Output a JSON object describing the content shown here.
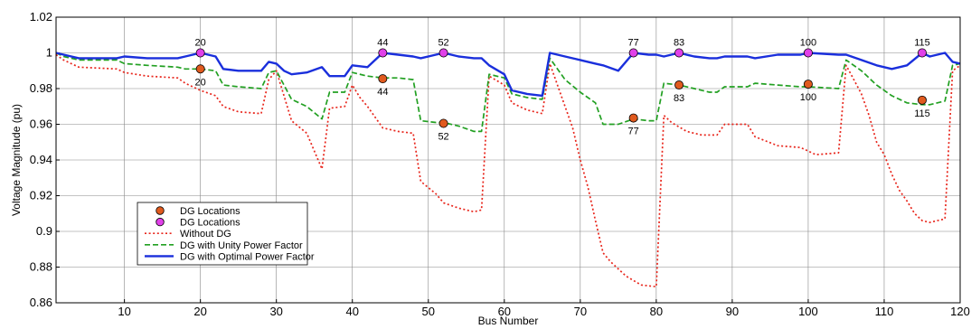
{
  "chart_data": {
    "type": "line",
    "xlabel": "Bus Number",
    "ylabel": "Voltage Magnitude (pu)",
    "xlim": [
      1,
      120
    ],
    "ylim": [
      0.86,
      1.02
    ],
    "xticks": [
      10,
      20,
      30,
      40,
      50,
      60,
      70,
      80,
      90,
      100,
      110,
      120
    ],
    "yticks": [
      0.86,
      0.88,
      0.9,
      0.92,
      0.94,
      0.96,
      0.98,
      1,
      1.02
    ],
    "ytick_labels": [
      "0.86",
      "0.88",
      "0.9",
      "0.92",
      "0.94",
      "0.96",
      "0.98",
      "1",
      "1.02"
    ],
    "grid": true,
    "legend_position": "bottom-left",
    "series": [
      {
        "name": "Without DG",
        "style": "dotted",
        "color": "#e8261c",
        "points": [
          [
            1,
            0.999
          ],
          [
            2,
            0.996
          ],
          [
            4,
            0.992
          ],
          [
            9,
            0.991
          ],
          [
            10,
            0.989
          ],
          [
            13,
            0.987
          ],
          [
            17,
            0.986
          ],
          [
            18,
            0.983
          ],
          [
            20,
            0.979
          ],
          [
            22,
            0.976
          ],
          [
            23,
            0.97
          ],
          [
            25,
            0.967
          ],
          [
            28,
            0.966
          ],
          [
            29,
            0.985
          ],
          [
            30,
            0.99
          ],
          [
            31,
            0.976
          ],
          [
            32,
            0.962
          ],
          [
            34,
            0.955
          ],
          [
            36,
            0.935
          ],
          [
            37,
            0.969
          ],
          [
            39,
            0.97
          ],
          [
            40,
            0.982
          ],
          [
            41,
            0.975
          ],
          [
            42,
            0.97
          ],
          [
            44,
            0.958
          ],
          [
            46,
            0.956
          ],
          [
            48,
            0.955
          ],
          [
            49,
            0.928
          ],
          [
            51,
            0.921
          ],
          [
            52,
            0.916
          ],
          [
            54,
            0.913
          ],
          [
            56,
            0.911
          ],
          [
            57,
            0.912
          ],
          [
            58,
            0.987
          ],
          [
            60,
            0.982
          ],
          [
            61,
            0.972
          ],
          [
            63,
            0.968
          ],
          [
            65,
            0.966
          ],
          [
            66,
            0.994
          ],
          [
            68,
            0.97
          ],
          [
            69,
            0.958
          ],
          [
            70,
            0.94
          ],
          [
            71,
            0.925
          ],
          [
            72,
            0.906
          ],
          [
            73,
            0.888
          ],
          [
            74,
            0.883
          ],
          [
            76,
            0.875
          ],
          [
            78,
            0.87
          ],
          [
            80,
            0.869
          ],
          [
            81,
            0.965
          ],
          [
            82,
            0.961
          ],
          [
            84,
            0.956
          ],
          [
            86,
            0.954
          ],
          [
            88,
            0.954
          ],
          [
            89,
            0.96
          ],
          [
            92,
            0.96
          ],
          [
            93,
            0.953
          ],
          [
            96,
            0.948
          ],
          [
            99,
            0.947
          ],
          [
            100,
            0.945
          ],
          [
            101,
            0.943
          ],
          [
            104,
            0.944
          ],
          [
            105,
            0.993
          ],
          [
            106,
            0.985
          ],
          [
            107,
            0.977
          ],
          [
            108,
            0.965
          ],
          [
            109,
            0.95
          ],
          [
            110,
            0.943
          ],
          [
            111,
            0.932
          ],
          [
            112,
            0.923
          ],
          [
            113,
            0.917
          ],
          [
            114,
            0.91
          ],
          [
            115,
            0.906
          ],
          [
            116,
            0.905
          ],
          [
            117,
            0.906
          ],
          [
            118,
            0.907
          ],
          [
            119,
            0.99
          ],
          [
            120,
            0.993
          ]
        ]
      },
      {
        "name": "DG with Unity Power Factor",
        "style": "dashed",
        "color": "#22a022",
        "points": [
          [
            1,
            1.0
          ],
          [
            2,
            0.998
          ],
          [
            4,
            0.996
          ],
          [
            9,
            0.996
          ],
          [
            10,
            0.994
          ],
          [
            13,
            0.993
          ],
          [
            17,
            0.992
          ],
          [
            18,
            0.991
          ],
          [
            20,
            0.991
          ],
          [
            22,
            0.99
          ],
          [
            23,
            0.982
          ],
          [
            25,
            0.981
          ],
          [
            28,
            0.98
          ],
          [
            29,
            0.989
          ],
          [
            30,
            0.99
          ],
          [
            31,
            0.982
          ],
          [
            32,
            0.974
          ],
          [
            34,
            0.97
          ],
          [
            36,
            0.963
          ],
          [
            37,
            0.978
          ],
          [
            39,
            0.978
          ],
          [
            40,
            0.989
          ],
          [
            42,
            0.987
          ],
          [
            44,
            0.986
          ],
          [
            46,
            0.986
          ],
          [
            48,
            0.985
          ],
          [
            49,
            0.962
          ],
          [
            51,
            0.961
          ],
          [
            52,
            0.961
          ],
          [
            54,
            0.959
          ],
          [
            56,
            0.956
          ],
          [
            57,
            0.956
          ],
          [
            58,
            0.988
          ],
          [
            60,
            0.986
          ],
          [
            61,
            0.977
          ],
          [
            63,
            0.975
          ],
          [
            65,
            0.974
          ],
          [
            66,
            0.997
          ],
          [
            68,
            0.985
          ],
          [
            70,
            0.978
          ],
          [
            72,
            0.972
          ],
          [
            73,
            0.96
          ],
          [
            75,
            0.96
          ],
          [
            77,
            0.963
          ],
          [
            79,
            0.962
          ],
          [
            80,
            0.962
          ],
          [
            81,
            0.983
          ],
          [
            83,
            0.982
          ],
          [
            85,
            0.98
          ],
          [
            87,
            0.978
          ],
          [
            88,
            0.978
          ],
          [
            89,
            0.981
          ],
          [
            92,
            0.981
          ],
          [
            93,
            0.983
          ],
          [
            96,
            0.982
          ],
          [
            99,
            0.981
          ],
          [
            100,
            0.981
          ],
          [
            104,
            0.98
          ],
          [
            105,
            0.996
          ],
          [
            107,
            0.99
          ],
          [
            109,
            0.982
          ],
          [
            111,
            0.976
          ],
          [
            113,
            0.972
          ],
          [
            115,
            0.971
          ],
          [
            116,
            0.971
          ],
          [
            117,
            0.972
          ],
          [
            118,
            0.973
          ],
          [
            119,
            0.993
          ],
          [
            120,
            0.994
          ]
        ]
      },
      {
        "name": "DG with Optimal Power Factor",
        "style": "solid",
        "color": "#1a2fdc",
        "points": [
          [
            1,
            1.0
          ],
          [
            2,
            0.999
          ],
          [
            4,
            0.997
          ],
          [
            9,
            0.997
          ],
          [
            10,
            0.998
          ],
          [
            13,
            0.997
          ],
          [
            17,
            0.997
          ],
          [
            18,
            0.998
          ],
          [
            20,
            1.0
          ],
          [
            22,
            0.998
          ],
          [
            23,
            0.991
          ],
          [
            25,
            0.99
          ],
          [
            28,
            0.99
          ],
          [
            29,
            0.995
          ],
          [
            30,
            0.994
          ],
          [
            31,
            0.99
          ],
          [
            32,
            0.988
          ],
          [
            34,
            0.989
          ],
          [
            36,
            0.992
          ],
          [
            37,
            0.987
          ],
          [
            39,
            0.987
          ],
          [
            40,
            0.993
          ],
          [
            42,
            0.992
          ],
          [
            44,
            1.0
          ],
          [
            46,
            0.999
          ],
          [
            48,
            0.998
          ],
          [
            49,
            0.997
          ],
          [
            51,
            0.999
          ],
          [
            52,
            1.0
          ],
          [
            54,
            0.998
          ],
          [
            56,
            0.997
          ],
          [
            57,
            0.997
          ],
          [
            58,
            0.993
          ],
          [
            60,
            0.988
          ],
          [
            61,
            0.979
          ],
          [
            63,
            0.977
          ],
          [
            65,
            0.976
          ],
          [
            66,
            1.0
          ],
          [
            68,
            0.998
          ],
          [
            70,
            0.996
          ],
          [
            72,
            0.994
          ],
          [
            73,
            0.993
          ],
          [
            75,
            0.99
          ],
          [
            77,
            1.0
          ],
          [
            79,
            0.999
          ],
          [
            80,
            0.999
          ],
          [
            81,
            0.998
          ],
          [
            83,
            1.0
          ],
          [
            85,
            0.998
          ],
          [
            87,
            0.997
          ],
          [
            88,
            0.997
          ],
          [
            89,
            0.998
          ],
          [
            92,
            0.998
          ],
          [
            93,
            0.997
          ],
          [
            96,
            0.999
          ],
          [
            99,
            0.999
          ],
          [
            100,
            1.0
          ],
          [
            104,
            0.999
          ],
          [
            105,
            0.999
          ],
          [
            107,
            0.996
          ],
          [
            109,
            0.993
          ],
          [
            111,
            0.991
          ],
          [
            113,
            0.993
          ],
          [
            115,
            1.0
          ],
          [
            116,
            0.998
          ],
          [
            117,
            0.999
          ],
          [
            118,
            1.0
          ],
          [
            119,
            0.995
          ],
          [
            120,
            0.994
          ]
        ]
      }
    ],
    "markers": [
      {
        "name": "DG Locations",
        "color": "#e05a1e",
        "points": [
          [
            20,
            0.991
          ],
          [
            44,
            0.9855
          ],
          [
            52,
            0.9605
          ],
          [
            77,
            0.9635
          ],
          [
            83,
            0.982
          ],
          [
            100,
            0.9825
          ],
          [
            115,
            0.9735
          ]
        ],
        "labels": [
          "20",
          "44",
          "52",
          "77",
          "83",
          "100",
          "115"
        ],
        "label_position": "below"
      },
      {
        "name": "DG Locations",
        "color": "#e040e8",
        "points": [
          [
            20,
            1.0
          ],
          [
            44,
            1.0
          ],
          [
            52,
            1.0
          ],
          [
            77,
            1.0
          ],
          [
            83,
            1.0
          ],
          [
            100,
            1.0
          ],
          [
            115,
            1.0
          ]
        ],
        "labels": [
          "20",
          "44",
          "52",
          "77",
          "83",
          "100",
          "115"
        ],
        "label_position": "above"
      }
    ],
    "legend": [
      {
        "label": "DG Locations",
        "kind": "marker",
        "color": "#e05a1e"
      },
      {
        "label": "DG Locations",
        "kind": "marker",
        "color": "#e040e8"
      },
      {
        "label": "Without DG",
        "kind": "line",
        "style": "dotted",
        "color": "#e8261c"
      },
      {
        "label": "DG with Unity Power Factor",
        "kind": "line",
        "style": "dashed",
        "color": "#22a022"
      },
      {
        "label": "DG with Optimal Power Factor",
        "kind": "line",
        "style": "solid",
        "color": "#1a2fdc"
      }
    ]
  }
}
